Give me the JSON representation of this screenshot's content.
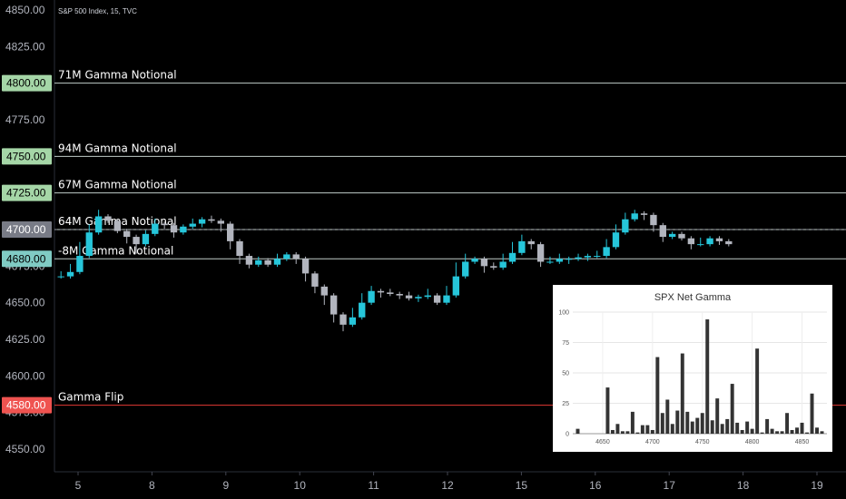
{
  "header": {
    "symbol": "S&P 500 Index, 15, TVC"
  },
  "chart_data": {
    "type": "candlestick",
    "y_axis": {
      "ticks": [
        "4850.00",
        "4825.00",
        "4775.00",
        "4725.00",
        "4700.00",
        "4675.00",
        "4650.00",
        "4625.00",
        "4600.00",
        "4575.00",
        "4550.00"
      ],
      "tick_values": [
        4850,
        4825,
        4775,
        4725,
        4700,
        4675,
        4650,
        4625,
        4600,
        4575,
        4550
      ]
    },
    "x_axis": {
      "labels": [
        "5",
        "8",
        "9",
        "10",
        "11",
        "12",
        "15",
        "16",
        "17",
        "18",
        "19"
      ]
    },
    "last_price": {
      "value": 4700,
      "label": "4700.00"
    },
    "levels": [
      {
        "value": 4800,
        "label": "71M Gamma Notional",
        "badge": "4800.00",
        "color": "#a5d6a7"
      },
      {
        "value": 4750,
        "label": "94M Gamma Notional",
        "badge": "4750.00",
        "color": "#a5d6a7"
      },
      {
        "value": 4725,
        "label": "67M Gamma Notional",
        "badge": "4725.00",
        "color": "#a5d6a7"
      },
      {
        "value": 4700,
        "label": "64M Gamma Notional",
        "badge": "",
        "color": "#a5d6a7"
      },
      {
        "value": 4680,
        "label": "-8M Gamma Notional",
        "badge": "4680.00",
        "color": "#80cbc4"
      },
      {
        "value": 4580,
        "label": "Gamma Flip",
        "badge": "4580.00",
        "color": "#ef5350"
      }
    ],
    "colors": {
      "up": "#26c6da",
      "down": "#b2b5be",
      "level_line": "#c0ccc8",
      "flip_line": "#e53935",
      "axis_text": "#b2b5be"
    },
    "price_path": [
      [
        4670,
        4668
      ],
      [
        4675,
        4671
      ],
      [
        4690,
        4682
      ],
      [
        4702,
        4698
      ],
      [
        4712,
        4709
      ],
      [
        4708,
        4706
      ],
      [
        4700,
        4699
      ],
      [
        4692,
        4695
      ],
      [
        4685,
        4690
      ],
      [
        4698,
        4697
      ],
      [
        4706,
        4704
      ],
      [
        4702,
        4703
      ],
      [
        4696,
        4698
      ],
      [
        4700,
        4702
      ],
      [
        4706,
        4704
      ],
      [
        4703,
        4707
      ],
      [
        4708,
        4706
      ],
      [
        4700,
        4704
      ],
      [
        4688,
        4692
      ],
      [
        4678,
        4682
      ],
      [
        4675,
        4676
      ],
      [
        4680,
        4679
      ],
      [
        4678,
        4676
      ],
      [
        4682,
        4680
      ],
      [
        4681,
        4683
      ],
      [
        4678,
        4680
      ],
      [
        4666,
        4670
      ],
      [
        4658,
        4661
      ],
      [
        4650,
        4655
      ],
      [
        4638,
        4642
      ],
      [
        4632,
        4635
      ],
      [
        4645,
        4640
      ],
      [
        4655,
        4650
      ],
      [
        4660,
        4658
      ],
      [
        4655,
        4657
      ],
      [
        4658,
        4656
      ],
      [
        4654,
        4655
      ],
      [
        4656,
        4653
      ],
      [
        4652,
        4654
      ],
      [
        4658,
        4655
      ],
      [
        4652,
        4650
      ],
      [
        4660,
        4655
      ],
      [
        4676,
        4668
      ],
      [
        4682,
        4678
      ],
      [
        4678,
        4680
      ],
      [
        4672,
        4675
      ],
      [
        4676,
        4674
      ],
      [
        4682,
        4678
      ],
      [
        4690,
        4684
      ],
      [
        4695,
        4692
      ],
      [
        4688,
        4690
      ],
      [
        4676,
        4678
      ],
      [
        4680,
        4678
      ],
      [
        4682,
        4680
      ],
      [
        4678,
        4680
      ],
      [
        4682,
        4681
      ],
      [
        4680,
        4682
      ],
      [
        4684,
        4682
      ],
      [
        4692,
        4688
      ],
      [
        4702,
        4698
      ],
      [
        4710,
        4707
      ],
      [
        4712,
        4711
      ],
      [
        4708,
        4710
      ],
      [
        4700,
        4703
      ],
      [
        4693,
        4695
      ],
      [
        4695,
        4697
      ],
      [
        4697,
        4694
      ],
      [
        4688,
        4690
      ],
      [
        4693,
        4690
      ],
      [
        4692,
        4694
      ],
      [
        4691,
        4692
      ],
      [
        4690,
        4690
      ]
    ]
  },
  "inset": {
    "title": "SPX Net Gamma",
    "y_ticks": [
      "100",
      "75",
      "50",
      "25",
      "0"
    ],
    "y_values": [
      100,
      75,
      50,
      25,
      0
    ],
    "x_ticks": [
      "4650",
      "4700",
      "4750",
      "4800",
      "4850"
    ],
    "x_values": [
      4650,
      4700,
      4750,
      4800,
      4850
    ],
    "bars": [
      [
        4625,
        4
      ],
      [
        4655,
        38
      ],
      [
        4660,
        3
      ],
      [
        4665,
        8
      ],
      [
        4670,
        2
      ],
      [
        4675,
        2
      ],
      [
        4680,
        18
      ],
      [
        4685,
        1
      ],
      [
        4690,
        7
      ],
      [
        4695,
        7
      ],
      [
        4700,
        3
      ],
      [
        4705,
        63
      ],
      [
        4710,
        17
      ],
      [
        4715,
        28
      ],
      [
        4720,
        8
      ],
      [
        4725,
        19
      ],
      [
        4730,
        66
      ],
      [
        4735,
        18
      ],
      [
        4740,
        10
      ],
      [
        4745,
        13
      ],
      [
        4750,
        17
      ],
      [
        4755,
        94
      ],
      [
        4760,
        11
      ],
      [
        4765,
        29
      ],
      [
        4770,
        8
      ],
      [
        4775,
        12
      ],
      [
        4780,
        41
      ],
      [
        4785,
        9
      ],
      [
        4790,
        3
      ],
      [
        4795,
        10
      ],
      [
        4800,
        4
      ],
      [
        4805,
        70
      ],
      [
        4810,
        1
      ],
      [
        4815,
        12
      ],
      [
        4820,
        4
      ],
      [
        4825,
        2
      ],
      [
        4830,
        2
      ],
      [
        4835,
        17
      ],
      [
        4840,
        3
      ],
      [
        4845,
        5
      ],
      [
        4850,
        9
      ],
      [
        4855,
        1
      ],
      [
        4860,
        33
      ],
      [
        4865,
        5
      ],
      [
        4870,
        2
      ]
    ]
  }
}
